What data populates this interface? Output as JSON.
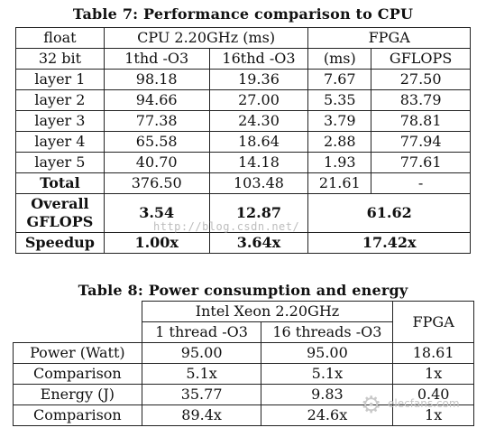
{
  "table7": {
    "caption": "Table 7: Performance comparison to CPU",
    "header1": [
      "float",
      "CPU 2.20GHz (ms)",
      "FPGA"
    ],
    "header2": [
      "32 bit",
      "1thd -O3",
      "16thd -O3",
      "(ms)",
      "GFLOPS"
    ],
    "rows": [
      [
        "layer 1",
        "98.18",
        "19.36",
        "7.67",
        "27.50"
      ],
      [
        "layer 2",
        "94.66",
        "27.00",
        "5.35",
        "83.79"
      ],
      [
        "layer 3",
        "77.38",
        "24.30",
        "3.79",
        "78.81"
      ],
      [
        "layer 4",
        "65.58",
        "18.64",
        "2.88",
        "77.94"
      ],
      [
        "layer 5",
        "40.70",
        "14.18",
        "1.93",
        "77.61"
      ]
    ],
    "total": [
      "Total",
      "376.50",
      "103.48",
      "21.61",
      "-"
    ],
    "overall": {
      "label_line1": "Overall",
      "label_line2": "GFLOPS",
      "cpu1": "3.54",
      "cpu16": "12.87",
      "fpga": "61.62"
    },
    "speedup": {
      "label": "Speedup",
      "cpu1": "1.00x",
      "cpu16": "3.64x",
      "fpga": "17.42x"
    }
  },
  "table8": {
    "caption": "Table 8: Power consumption and energy",
    "header_cpu": "Intel Xeon 2.20GHz",
    "header_fpga": "FPGA",
    "subheaders": [
      "1 thread -O3",
      "16 threads -O3"
    ],
    "rows": [
      [
        "Power (Watt)",
        "95.00",
        "95.00",
        "18.61"
      ],
      [
        "Comparison",
        "5.1x",
        "5.1x",
        "1x"
      ],
      [
        "Energy (J)",
        "35.77",
        "9.83",
        "0.40"
      ],
      [
        "Comparison",
        "89.4x",
        "24.6x",
        "1x"
      ]
    ]
  },
  "watermarks": {
    "blog": "http://blog.csdn.net/",
    "site": "elecfans.com"
  }
}
